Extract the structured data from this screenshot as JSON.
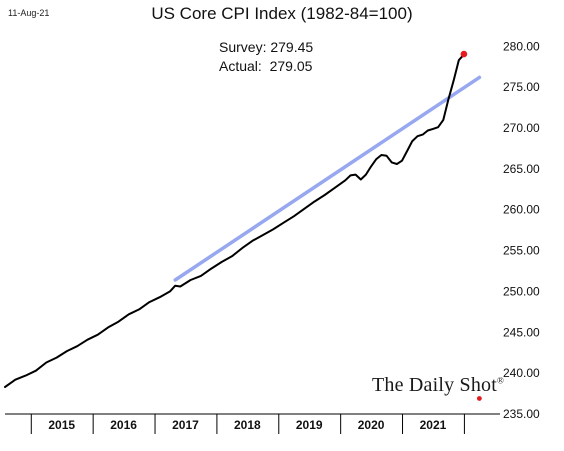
{
  "date_stamp": "11-Aug-21",
  "chart_data": {
    "type": "line",
    "title": "US Core CPI Index (1982-84=100)",
    "xlabel": "",
    "ylabel": "",
    "ylim": [
      235,
      282
    ],
    "y_ticks": [
      "235.00",
      "240.00",
      "245.00",
      "250.00",
      "255.00",
      "260.00",
      "265.00",
      "270.00",
      "275.00",
      "280.00"
    ],
    "x_categories": [
      "2015",
      "2016",
      "2017",
      "2018",
      "2019",
      "2020",
      "2021"
    ],
    "series": [
      {
        "color": "#000000",
        "values": [
          {
            "x": "2014-08",
            "y": 238.3
          },
          {
            "x": "2014-10",
            "y": 239.2
          },
          {
            "x": "2014-12",
            "y": 239.7
          },
          {
            "x": "2015-02",
            "y": 240.3
          },
          {
            "x": "2015-04",
            "y": 241.3
          },
          {
            "x": "2015-06",
            "y": 241.9
          },
          {
            "x": "2015-08",
            "y": 242.7
          },
          {
            "x": "2015-10",
            "y": 243.3
          },
          {
            "x": "2015-12",
            "y": 244.1
          },
          {
            "x": "2016-02",
            "y": 244.7
          },
          {
            "x": "2016-04",
            "y": 245.6
          },
          {
            "x": "2016-06",
            "y": 246.3
          },
          {
            "x": "2016-08",
            "y": 247.2
          },
          {
            "x": "2016-10",
            "y": 247.8
          },
          {
            "x": "2016-12",
            "y": 248.7
          },
          {
            "x": "2017-02",
            "y": 249.3
          },
          {
            "x": "2017-04",
            "y": 250.0
          },
          {
            "x": "2017-05",
            "y": 250.7
          },
          {
            "x": "2017-06",
            "y": 250.6
          },
          {
            "x": "2017-08",
            "y": 251.4
          },
          {
            "x": "2017-10",
            "y": 251.9
          },
          {
            "x": "2017-12",
            "y": 252.8
          },
          {
            "x": "2018-02",
            "y": 253.6
          },
          {
            "x": "2018-04",
            "y": 254.3
          },
          {
            "x": "2018-06",
            "y": 255.3
          },
          {
            "x": "2018-08",
            "y": 256.2
          },
          {
            "x": "2018-10",
            "y": 256.9
          },
          {
            "x": "2018-12",
            "y": 257.6
          },
          {
            "x": "2019-02",
            "y": 258.4
          },
          {
            "x": "2019-04",
            "y": 259.2
          },
          {
            "x": "2019-06",
            "y": 260.1
          },
          {
            "x": "2019-08",
            "y": 261.0
          },
          {
            "x": "2019-10",
            "y": 261.8
          },
          {
            "x": "2019-12",
            "y": 262.7
          },
          {
            "x": "2020-02",
            "y": 263.6
          },
          {
            "x": "2020-03",
            "y": 264.2
          },
          {
            "x": "2020-04",
            "y": 264.3
          },
          {
            "x": "2020-05",
            "y": 263.7
          },
          {
            "x": "2020-06",
            "y": 264.3
          },
          {
            "x": "2020-07",
            "y": 265.3
          },
          {
            "x": "2020-08",
            "y": 266.2
          },
          {
            "x": "2020-09",
            "y": 266.7
          },
          {
            "x": "2020-10",
            "y": 266.6
          },
          {
            "x": "2020-11",
            "y": 265.8
          },
          {
            "x": "2020-12",
            "y": 265.6
          },
          {
            "x": "2021-01",
            "y": 266.0
          },
          {
            "x": "2021-02",
            "y": 267.2
          },
          {
            "x": "2021-03",
            "y": 268.4
          },
          {
            "x": "2021-04",
            "y": 269.0
          },
          {
            "x": "2021-05",
            "y": 269.2
          },
          {
            "x": "2021-06",
            "y": 269.7
          },
          {
            "x": "2021-07",
            "y": 269.9
          },
          {
            "x": "2021-08",
            "y": 270.1
          },
          {
            "x": "2021-09",
            "y": 271.0
          },
          {
            "x": "2021-10",
            "y": 273.5
          },
          {
            "x": "2021-11",
            "y": 275.8
          },
          {
            "x": "2021-12",
            "y": 278.3
          },
          {
            "x": "2022-01",
            "y": 279.0
          }
        ]
      },
      {
        "color": "#8c9ff0",
        "values": [
          {
            "x": "2017-05",
            "y": 251.4
          },
          {
            "x": "2022-04",
            "y": 276.2
          }
        ]
      }
    ],
    "highlight_points": [
      {
        "x": "2022-01",
        "y": 279.05,
        "color": "#e41a1c"
      },
      {
        "x": "2022-04",
        "y": 236.9,
        "color": "#e41a1c"
      }
    ],
    "annotations": [
      "Survey: 279.45",
      "Actual:  279.05"
    ]
  },
  "watermark": "The Daily Shot",
  "watermark_mark": "®"
}
